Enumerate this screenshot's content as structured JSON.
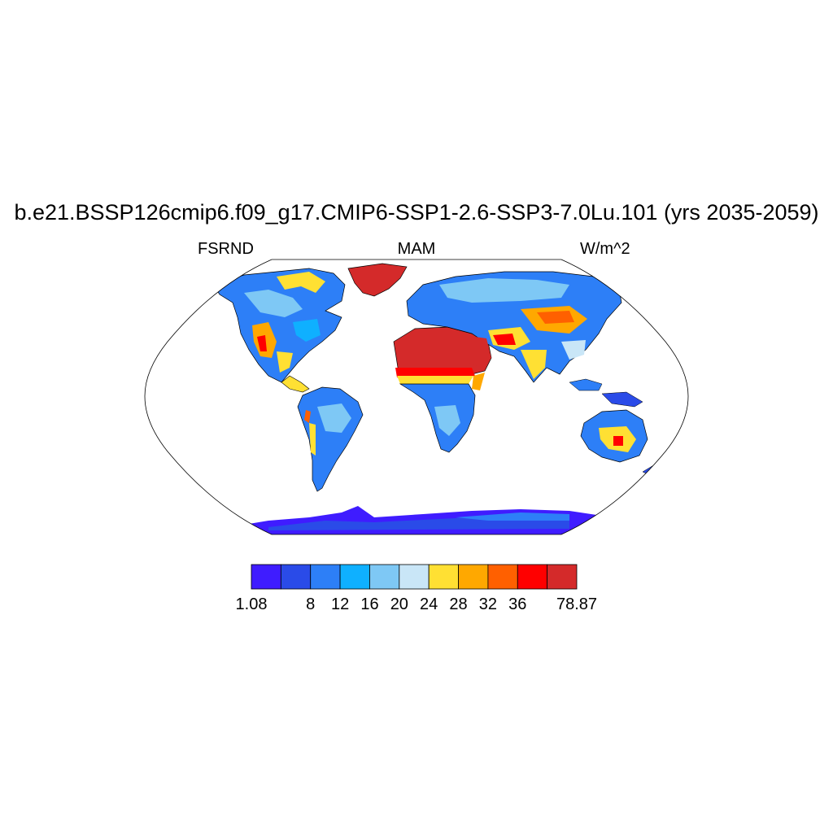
{
  "header": {
    "title": "b.e21.BSSP126cmip6.f09_g17.CMIP6-SSP1-2.6-SSP3-7.0Lu.101 (yrs 2035-2059)",
    "variable": "FSRND",
    "season": "MAM",
    "units": "W/m^2"
  },
  "map": {
    "projection": "Robinson",
    "background": "#ffffff",
    "outline_color": "#000000"
  },
  "colorbar": {
    "colors": [
      "#3f1cff",
      "#2a4be8",
      "#2d7ff7",
      "#0fb0ff",
      "#7ec8f5",
      "#c9e6f7",
      "#ffe033",
      "#ffa800",
      "#ff6000",
      "#ff0000",
      "#d42a2a"
    ],
    "tick_labels": [
      "1.08",
      "",
      "8",
      "12",
      "16",
      "20",
      "24",
      "28",
      "32",
      "36",
      "",
      "78.87"
    ]
  }
}
